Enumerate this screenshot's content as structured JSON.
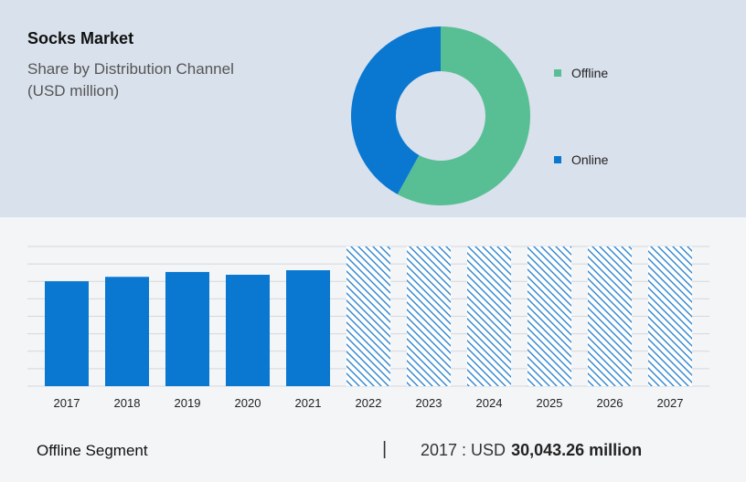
{
  "header": {
    "title": "Socks Market",
    "subtitle_line1": "Share by Distribution Channel",
    "subtitle_line2": "(USD million)"
  },
  "colors": {
    "offline": "#58bf94",
    "online": "#0a78d1",
    "bar": "#0a78d1",
    "forecast_hatch": "#2d84cf",
    "top_bg": "#d9e1ec",
    "bottom_bg": "#f4f5f7",
    "grid": "#d4d7dc"
  },
  "chart_data": [
    {
      "type": "pie",
      "variant": "donut",
      "title": "Socks Market",
      "subtitle": "Share by Distribution Channel (USD million)",
      "slices": [
        {
          "name": "Offline",
          "value": 58
        },
        {
          "name": "Online",
          "value": 42
        }
      ],
      "legend_position": "right"
    },
    {
      "type": "bar",
      "categories": [
        "2017",
        "2018",
        "2019",
        "2020",
        "2021",
        "2022",
        "2023",
        "2024",
        "2025",
        "2026",
        "2027"
      ],
      "values": [
        30043.26,
        31300,
        32700,
        31900,
        33200,
        null,
        null,
        null,
        null,
        null,
        null
      ],
      "forecast_categories": [
        "2022",
        "2023",
        "2024",
        "2025",
        "2026",
        "2027"
      ],
      "ylim": [
        0,
        40000
      ],
      "grid": true,
      "xlabel": "",
      "ylabel": ""
    }
  ],
  "footer": {
    "segment_label": "Offline Segment",
    "separator": "|",
    "year_text": "2017 : USD",
    "value_text": "30,043.26 million"
  }
}
